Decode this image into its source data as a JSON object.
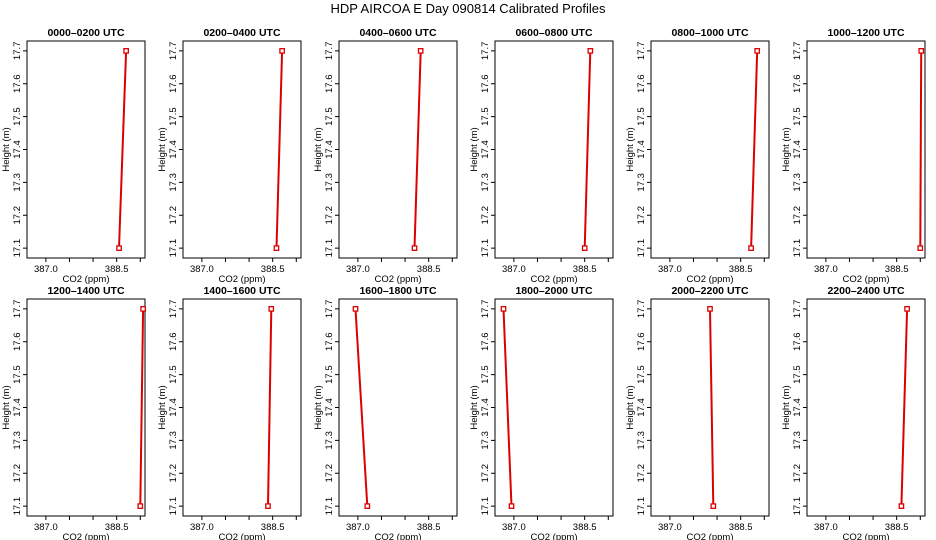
{
  "title": "HDP AIRCOA E  Day 090814  Calibrated Profiles",
  "chart_data": [
    {
      "type": "line",
      "title": "0000–0200 UTC",
      "xlabel": "CO2 (ppm)",
      "ylabel": "Height (m)",
      "xlim": [
        386.6,
        389.1
      ],
      "ylim": [
        17.07,
        17.73
      ],
      "x_ticks": [
        387.0,
        387.5,
        388.0,
        388.5,
        389.0
      ],
      "x_tick_labels": [
        "387.0",
        "",
        "",
        "388.5",
        ""
      ],
      "y_ticks": [
        17.1,
        17.2,
        17.3,
        17.4,
        17.5,
        17.6,
        17.7
      ],
      "y_tick_labels": [
        "17.1",
        "17.2",
        "17.3",
        "17.4",
        "17.5",
        "17.6",
        "17.7"
      ],
      "series": [
        {
          "x": [
            388.55,
            388.7
          ],
          "y": [
            17.1,
            17.7
          ]
        }
      ]
    },
    {
      "type": "line",
      "title": "0200–0400 UTC",
      "xlabel": "CO2 (ppm)",
      "ylabel": "Height (m)",
      "xlim": [
        386.6,
        389.1
      ],
      "ylim": [
        17.07,
        17.73
      ],
      "x_ticks": [
        387.0,
        387.5,
        388.0,
        388.5,
        389.0
      ],
      "x_tick_labels": [
        "387.0",
        "",
        "",
        "388.5",
        ""
      ],
      "y_ticks": [
        17.1,
        17.2,
        17.3,
        17.4,
        17.5,
        17.6,
        17.7
      ],
      "y_tick_labels": [
        "17.1",
        "17.2",
        "17.3",
        "17.4",
        "17.5",
        "17.6",
        "17.7"
      ],
      "series": [
        {
          "x": [
            388.58,
            388.7
          ],
          "y": [
            17.1,
            17.7
          ]
        }
      ]
    },
    {
      "type": "line",
      "title": "0400–0600 UTC",
      "xlabel": "CO2 (ppm)",
      "ylabel": "Height (m)",
      "xlim": [
        386.6,
        389.1
      ],
      "ylim": [
        17.07,
        17.73
      ],
      "x_ticks": [
        387.0,
        387.5,
        388.0,
        388.5,
        389.0
      ],
      "x_tick_labels": [
        "387.0",
        "",
        "",
        "388.5",
        ""
      ],
      "y_ticks": [
        17.1,
        17.2,
        17.3,
        17.4,
        17.5,
        17.6,
        17.7
      ],
      "y_tick_labels": [
        "17.1",
        "17.2",
        "17.3",
        "17.4",
        "17.5",
        "17.6",
        "17.7"
      ],
      "series": [
        {
          "x": [
            388.2,
            388.33
          ],
          "y": [
            17.1,
            17.7
          ]
        }
      ]
    },
    {
      "type": "line",
      "title": "0600–0800 UTC",
      "xlabel": "CO2 (ppm)",
      "ylabel": "Height (m)",
      "xlim": [
        386.6,
        389.1
      ],
      "ylim": [
        17.07,
        17.73
      ],
      "x_ticks": [
        387.0,
        387.5,
        388.0,
        388.5,
        389.0
      ],
      "x_tick_labels": [
        "387.0",
        "",
        "",
        "388.5",
        ""
      ],
      "y_ticks": [
        17.1,
        17.2,
        17.3,
        17.4,
        17.5,
        17.6,
        17.7
      ],
      "y_tick_labels": [
        "17.1",
        "17.2",
        "17.3",
        "17.4",
        "17.5",
        "17.6",
        "17.7"
      ],
      "series": [
        {
          "x": [
            388.5,
            388.62
          ],
          "y": [
            17.1,
            17.7
          ]
        }
      ]
    },
    {
      "type": "line",
      "title": "0800–1000 UTC",
      "xlabel": "CO2 (ppm)",
      "ylabel": "Height (m)",
      "xlim": [
        386.6,
        389.1
      ],
      "ylim": [
        17.07,
        17.73
      ],
      "x_ticks": [
        387.0,
        387.5,
        388.0,
        388.5,
        389.0
      ],
      "x_tick_labels": [
        "387.0",
        "",
        "",
        "388.5",
        ""
      ],
      "y_ticks": [
        17.1,
        17.2,
        17.3,
        17.4,
        17.5,
        17.6,
        17.7
      ],
      "y_tick_labels": [
        "17.1",
        "17.2",
        "17.3",
        "17.4",
        "17.5",
        "17.6",
        "17.7"
      ],
      "series": [
        {
          "x": [
            388.72,
            388.85
          ],
          "y": [
            17.1,
            17.7
          ]
        }
      ]
    },
    {
      "type": "line",
      "title": "1000–1200 UTC",
      "xlabel": "CO2 (ppm)",
      "ylabel": "Height (m)",
      "xlim": [
        386.6,
        389.1
      ],
      "ylim": [
        17.07,
        17.73
      ],
      "x_ticks": [
        387.0,
        387.5,
        388.0,
        388.5,
        389.0
      ],
      "x_tick_labels": [
        "387.0",
        "",
        "",
        "388.5",
        ""
      ],
      "y_ticks": [
        17.1,
        17.2,
        17.3,
        17.4,
        17.5,
        17.6,
        17.7
      ],
      "y_tick_labels": [
        "17.1",
        "17.2",
        "17.3",
        "17.4",
        "17.5",
        "17.6",
        "17.7"
      ],
      "series": [
        {
          "x": [
            389.0,
            389.02
          ],
          "y": [
            17.1,
            17.7
          ]
        }
      ]
    },
    {
      "type": "line",
      "title": "1200–1400 UTC",
      "xlabel": "CO2 (ppm)",
      "ylabel": "Height (m)",
      "xlim": [
        386.6,
        389.1
      ],
      "ylim": [
        17.07,
        17.73
      ],
      "x_ticks": [
        387.0,
        387.5,
        388.0,
        388.5,
        389.0
      ],
      "x_tick_labels": [
        "387.0",
        "",
        "",
        "388.5",
        ""
      ],
      "y_ticks": [
        17.1,
        17.2,
        17.3,
        17.4,
        17.5,
        17.6,
        17.7
      ],
      "y_tick_labels": [
        "17.1",
        "17.2",
        "17.3",
        "17.4",
        "17.5",
        "17.6",
        "17.7"
      ],
      "series": [
        {
          "x": [
            389.0,
            389.06
          ],
          "y": [
            17.1,
            17.7
          ]
        }
      ]
    },
    {
      "type": "line",
      "title": "1400–1600 UTC",
      "xlabel": "CO2 (ppm)",
      "ylabel": "Height (m)",
      "xlim": [
        386.6,
        389.1
      ],
      "ylim": [
        17.07,
        17.73
      ],
      "x_ticks": [
        387.0,
        387.5,
        388.0,
        388.5,
        389.0
      ],
      "x_tick_labels": [
        "387.0",
        "",
        "",
        "388.5",
        ""
      ],
      "y_ticks": [
        17.1,
        17.2,
        17.3,
        17.4,
        17.5,
        17.6,
        17.7
      ],
      "y_tick_labels": [
        "17.1",
        "17.2",
        "17.3",
        "17.4",
        "17.5",
        "17.6",
        "17.7"
      ],
      "series": [
        {
          "x": [
            388.4,
            388.47
          ],
          "y": [
            17.1,
            17.7
          ]
        }
      ]
    },
    {
      "type": "line",
      "title": "1600–1800 UTC",
      "xlabel": "CO2 (ppm)",
      "ylabel": "Height (m)",
      "xlim": [
        386.6,
        389.1
      ],
      "ylim": [
        17.07,
        17.73
      ],
      "x_ticks": [
        387.0,
        387.5,
        388.0,
        388.5,
        389.0
      ],
      "x_tick_labels": [
        "387.0",
        "",
        "",
        "388.5",
        ""
      ],
      "y_ticks": [
        17.1,
        17.2,
        17.3,
        17.4,
        17.5,
        17.6,
        17.7
      ],
      "y_tick_labels": [
        "17.1",
        "17.2",
        "17.3",
        "17.4",
        "17.5",
        "17.6",
        "17.7"
      ],
      "series": [
        {
          "x": [
            387.2,
            386.95
          ],
          "y": [
            17.1,
            17.7
          ]
        }
      ]
    },
    {
      "type": "line",
      "title": "1800–2000 UTC",
      "xlabel": "CO2 (ppm)",
      "ylabel": "Height (m)",
      "xlim": [
        386.6,
        389.1
      ],
      "ylim": [
        17.07,
        17.73
      ],
      "x_ticks": [
        387.0,
        387.5,
        388.0,
        388.5,
        389.0
      ],
      "x_tick_labels": [
        "387.0",
        "",
        "",
        "388.5",
        ""
      ],
      "y_ticks": [
        17.1,
        17.2,
        17.3,
        17.4,
        17.5,
        17.6,
        17.7
      ],
      "y_tick_labels": [
        "17.1",
        "17.2",
        "17.3",
        "17.4",
        "17.5",
        "17.6",
        "17.7"
      ],
      "series": [
        {
          "x": [
            386.95,
            386.78
          ],
          "y": [
            17.1,
            17.7
          ]
        }
      ]
    },
    {
      "type": "line",
      "title": "2000–2200 UTC",
      "xlabel": "CO2 (ppm)",
      "ylabel": "Height (m)",
      "xlim": [
        386.6,
        389.1
      ],
      "ylim": [
        17.07,
        17.73
      ],
      "x_ticks": [
        387.0,
        387.5,
        388.0,
        388.5,
        389.0
      ],
      "x_tick_labels": [
        "387.0",
        "",
        "",
        "388.5",
        ""
      ],
      "y_ticks": [
        17.1,
        17.2,
        17.3,
        17.4,
        17.5,
        17.6,
        17.7
      ],
      "y_tick_labels": [
        "17.1",
        "17.2",
        "17.3",
        "17.4",
        "17.5",
        "17.6",
        "17.7"
      ],
      "series": [
        {
          "x": [
            387.92,
            387.85
          ],
          "y": [
            17.1,
            17.7
          ]
        }
      ]
    },
    {
      "type": "line",
      "title": "2200–2400 UTC",
      "xlabel": "CO2 (ppm)",
      "ylabel": "Height (m)",
      "xlim": [
        386.6,
        389.1
      ],
      "ylim": [
        17.07,
        17.73
      ],
      "x_ticks": [
        387.0,
        387.5,
        388.0,
        388.5,
        389.0
      ],
      "x_tick_labels": [
        "387.0",
        "",
        "",
        "388.5",
        ""
      ],
      "y_ticks": [
        17.1,
        17.2,
        17.3,
        17.4,
        17.5,
        17.6,
        17.7
      ],
      "y_tick_labels": [
        "17.1",
        "17.2",
        "17.3",
        "17.4",
        "17.5",
        "17.6",
        "17.7"
      ],
      "series": [
        {
          "x": [
            388.6,
            388.72
          ],
          "y": [
            17.1,
            17.7
          ]
        }
      ]
    }
  ],
  "colors": {
    "line": "#dd0000",
    "marker": "#dd0000",
    "axis": "#000000",
    "background": "#ffffff"
  }
}
